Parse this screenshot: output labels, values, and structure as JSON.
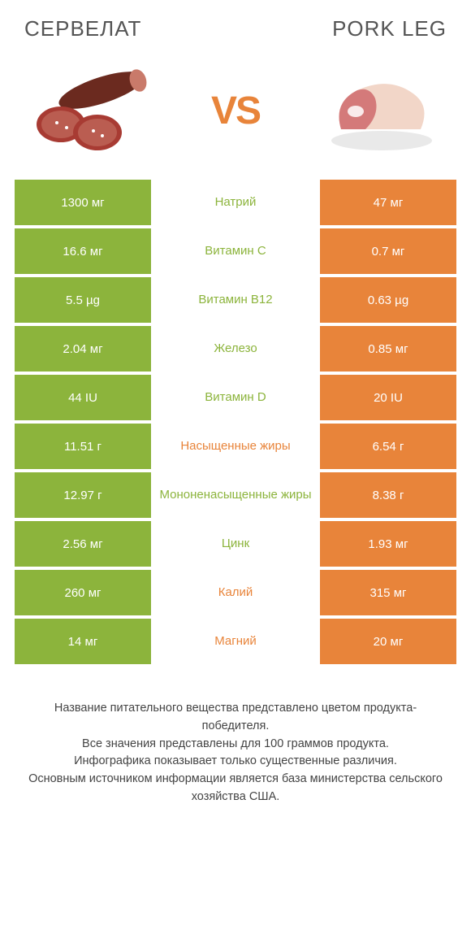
{
  "colors": {
    "green": "#8cb43c",
    "orange": "#e8843a",
    "text_green": "#8cb43c",
    "text_orange": "#e8843a",
    "bar_text": "#ffffff"
  },
  "header": {
    "left": "СЕРВЕЛАТ",
    "right": "PORK LEG",
    "vs": "VS"
  },
  "rows": [
    {
      "left": "1300 мг",
      "mid": "Натрий",
      "right": "47 мг",
      "winner": "left"
    },
    {
      "left": "16.6 мг",
      "mid": "Витамин C",
      "right": "0.7 мг",
      "winner": "left"
    },
    {
      "left": "5.5 µg",
      "mid": "Витамин B12",
      "right": "0.63 µg",
      "winner": "left"
    },
    {
      "left": "2.04 мг",
      "mid": "Железо",
      "right": "0.85 мг",
      "winner": "left"
    },
    {
      "left": "44 IU",
      "mid": "Витамин D",
      "right": "20 IU",
      "winner": "left"
    },
    {
      "left": "11.51 г",
      "mid": "Насыщенные жиры",
      "right": "6.54 г",
      "winner": "right"
    },
    {
      "left": "12.97 г",
      "mid": "Мононенасыщенные жиры",
      "right": "8.38 г",
      "winner": "left"
    },
    {
      "left": "2.56 мг",
      "mid": "Цинк",
      "right": "1.93 мг",
      "winner": "left"
    },
    {
      "left": "260 мг",
      "mid": "Калий",
      "right": "315 мг",
      "winner": "right"
    },
    {
      "left": "14 мг",
      "mid": "Магний",
      "right": "20 мг",
      "winner": "right"
    }
  ],
  "footer": {
    "line1": "Название питательного вещества представлено цветом продукта-победителя.",
    "line2": "Все значения представлены для 100 граммов продукта.",
    "line3": "Инфографика показывает только существенные различия.",
    "line4": "Основным источником информации является база министерства сельского хозяйства США."
  }
}
